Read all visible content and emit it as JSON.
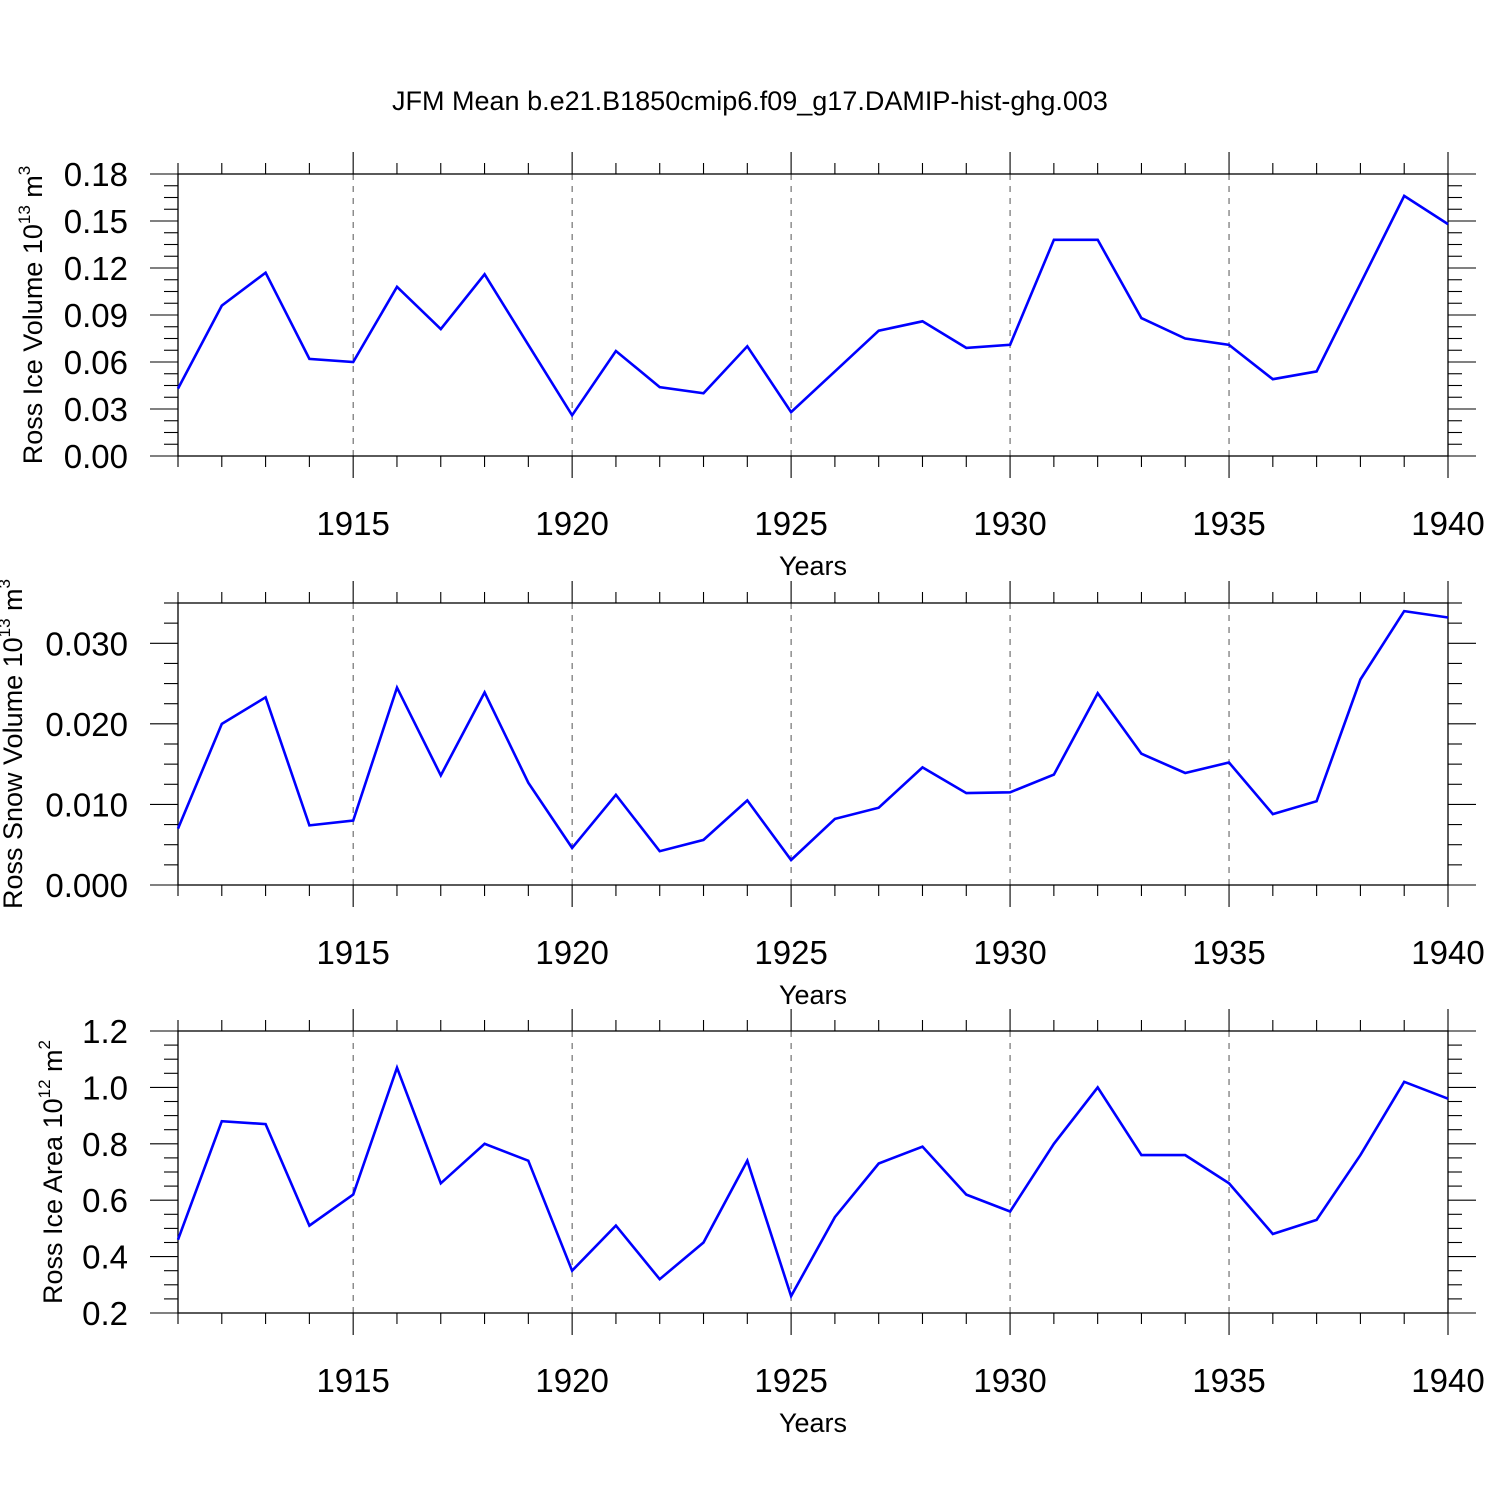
{
  "figure_title": "JFM Mean b.e21.B1850cmip6.f09_g17.DAMIP-hist-ghg.003",
  "chart_data": [
    {
      "type": "line",
      "title": "JFM Mean b.e21.B1850cmip6.f09_g17.DAMIP-hist-ghg.003",
      "xlabel": "Years",
      "ylabel": "Ross Ice Volume 10",
      "ylabel_exp": "13",
      "ylabel_unit": " m",
      "ylabel_unit_exp": "3",
      "xlim": [
        1911,
        1940
      ],
      "ylim": [
        0,
        0.18
      ],
      "xticks": [
        1915,
        1920,
        1925,
        1930,
        1935,
        1940
      ],
      "yticks": [
        "0.00",
        "0.03",
        "0.06",
        "0.09",
        "0.12",
        "0.15",
        "0.18"
      ],
      "grid": "vertical dashed at major x ticks",
      "x": [
        1911,
        1912,
        1913,
        1914,
        1915,
        1916,
        1917,
        1918,
        1919,
        1920,
        1921,
        1922,
        1923,
        1924,
        1925,
        1926,
        1927,
        1928,
        1929,
        1930,
        1931,
        1932,
        1933,
        1934,
        1935,
        1936,
        1937,
        1938,
        1939,
        1940
      ],
      "series": [
        {
          "name": "Ross Ice Volume",
          "color": "#0000ff",
          "values": [
            0.043,
            0.096,
            0.117,
            0.062,
            0.06,
            0.108,
            0.081,
            0.116,
            0.071,
            0.026,
            0.067,
            0.044,
            0.04,
            0.07,
            0.028,
            0.054,
            0.08,
            0.086,
            0.069,
            0.071,
            0.138,
            0.138,
            0.088,
            0.075,
            0.071,
            0.049,
            0.054,
            0.11,
            0.166,
            0.148
          ]
        }
      ]
    },
    {
      "type": "line",
      "xlabel": "Years",
      "ylabel": "Ross Snow Volume 10",
      "ylabel_exp": "13",
      "ylabel_unit": " m",
      "ylabel_unit_exp": "3",
      "xlim": [
        1911,
        1940
      ],
      "ylim": [
        0,
        0.035
      ],
      "xticks": [
        1915,
        1920,
        1925,
        1930,
        1935,
        1940
      ],
      "yticks": [
        "0.000",
        "0.010",
        "0.020",
        "0.030"
      ],
      "grid": "vertical dashed at major x ticks",
      "x": [
        1911,
        1912,
        1913,
        1914,
        1915,
        1916,
        1917,
        1918,
        1919,
        1920,
        1921,
        1922,
        1923,
        1924,
        1925,
        1926,
        1927,
        1928,
        1929,
        1930,
        1931,
        1932,
        1933,
        1934,
        1935,
        1936,
        1937,
        1938,
        1939,
        1940
      ],
      "series": [
        {
          "name": "Ross Snow Volume",
          "color": "#0000ff",
          "values": [
            0.007,
            0.02,
            0.0233,
            0.0074,
            0.008,
            0.0245,
            0.0136,
            0.0239,
            0.0127,
            0.0046,
            0.0112,
            0.0042,
            0.0056,
            0.0105,
            0.0031,
            0.0082,
            0.0096,
            0.0146,
            0.0114,
            0.0115,
            0.0137,
            0.0238,
            0.0163,
            0.0139,
            0.0152,
            0.0088,
            0.0104,
            0.0255,
            0.034,
            0.0332
          ]
        }
      ]
    },
    {
      "type": "line",
      "xlabel": "Years",
      "ylabel": "Ross Ice Area 10",
      "ylabel_exp": "12",
      "ylabel_unit": " m",
      "ylabel_unit_exp": "2",
      "xlim": [
        1911,
        1940
      ],
      "ylim": [
        0.2,
        1.2
      ],
      "xticks": [
        1915,
        1920,
        1925,
        1930,
        1935,
        1940
      ],
      "yticks": [
        "0.2",
        "0.4",
        "0.6",
        "0.8",
        "1.0",
        "1.2"
      ],
      "grid": "vertical dashed at major x ticks",
      "x": [
        1911,
        1912,
        1913,
        1914,
        1915,
        1916,
        1917,
        1918,
        1919,
        1920,
        1921,
        1922,
        1923,
        1924,
        1925,
        1926,
        1927,
        1928,
        1929,
        1930,
        1931,
        1932,
        1933,
        1934,
        1935,
        1936,
        1937,
        1938,
        1939,
        1940
      ],
      "series": [
        {
          "name": "Ross Ice Area",
          "color": "#0000ff",
          "values": [
            0.46,
            0.88,
            0.87,
            0.51,
            0.62,
            1.07,
            0.66,
            0.8,
            0.74,
            0.35,
            0.51,
            0.32,
            0.45,
            0.74,
            0.26,
            0.54,
            0.73,
            0.79,
            0.62,
            0.56,
            0.8,
            1.0,
            0.76,
            0.76,
            0.66,
            0.48,
            0.53,
            0.76,
            1.02,
            0.96
          ]
        }
      ]
    }
  ]
}
